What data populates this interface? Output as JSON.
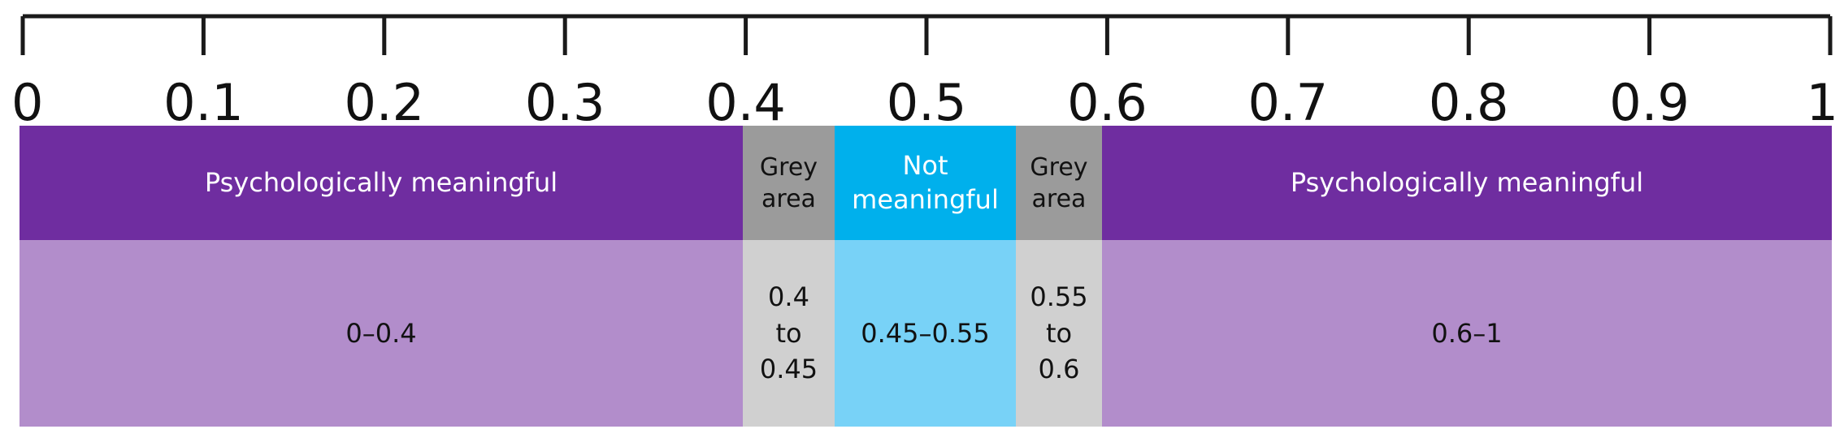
{
  "ruler": {
    "ticks": [
      "0",
      "0.1",
      "0.2",
      "0.3",
      "0.4",
      "0.5",
      "0.6",
      "0.7",
      "0.8",
      "0.9",
      "1"
    ]
  },
  "colors": {
    "meaningful_header": "#6f2da0",
    "meaningful_body": "#b28dcb",
    "grey_header": "#9b9b9b",
    "grey_body": "#d0d0d0",
    "not_meaningful_header": "#00b0ec",
    "not_meaningful_body": "#78d2f7"
  },
  "bands": {
    "left": {
      "header": "Psychologically meaningful",
      "value": "0–0.4"
    },
    "grey_left": {
      "header_line1": "Grey",
      "header_line2": "area",
      "value_line1": "0.4",
      "value_line2": "to",
      "value_line3": "0.45"
    },
    "center": {
      "header_line1": "Not",
      "header_line2": "meaningful",
      "value": "0.45–0.55"
    },
    "grey_right": {
      "header_line1": "Grey",
      "header_line2": "area",
      "value_line1": "0.55",
      "value_line2": "to",
      "value_line3": "0.6"
    },
    "right": {
      "header": "Psychologically meaningful",
      "value": "0.6–1"
    }
  }
}
